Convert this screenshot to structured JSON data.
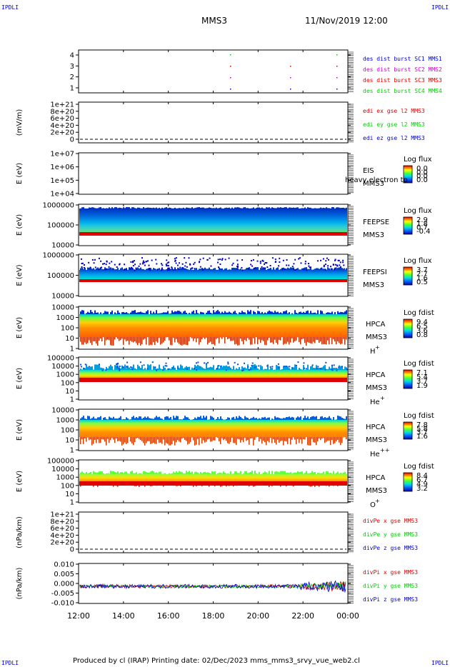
{
  "corners": {
    "tl": "IPDLI",
    "tr": "IPDLI",
    "bl": "IPDLI",
    "br": "IPDLI"
  },
  "header": {
    "spacecraft": "MMS3",
    "datetime": "11/Nov/2019 12:00"
  },
  "footer": {
    "text": "Produced by cl (IRAP)   Printing date: 02/Dec/2023   mms_mms3_srvy_vue_web2.cl"
  },
  "colors": {
    "blue": "#0000cc",
    "magenta": "#cc00cc",
    "red": "#dd0000",
    "green": "#00cc00"
  },
  "chart_data": {
    "type": "multi-panel",
    "x_ticks": [
      "12:00",
      "14:00",
      "16:00",
      "18:00",
      "20:00",
      "22:00",
      "00:00"
    ],
    "panels": [
      {
        "kind": "burst",
        "y_ticks": [
          "4",
          "3",
          "2",
          "1"
        ],
        "legend": [
          {
            "text": "des dist burst SC1 MMS1",
            "color": "#0000cc"
          },
          {
            "text": "des dist burst SC2 MMS2",
            "color": "#cc00cc"
          },
          {
            "text": "des dist burst SC3 MMS3",
            "color": "#dd0000"
          },
          {
            "text": "des dist burst SC4 MMS4",
            "color": "#00cc00"
          }
        ]
      },
      {
        "kind": "line",
        "ylabel": "(mV/m)",
        "y_ticks": [
          "1e+21",
          "8e+20",
          "6e+20",
          "4e+20",
          "2e+20",
          "0"
        ],
        "legend": [
          {
            "text": "edi ex gse l2 MMS3",
            "color": "#dd0000"
          },
          {
            "text": "edi ey gse l2 MMS3",
            "color": "#00cc00"
          },
          {
            "text": "edi ez gse l2 MMS3",
            "color": "#0000cc"
          }
        ]
      },
      {
        "kind": "spec",
        "ylabel": "E (eV)",
        "y_ticks": [
          "1e+07",
          "1e+06",
          "1e+05",
          "1e+04"
        ],
        "right_labels": [
          "EIS",
          "MMS3"
        ],
        "overlay": "heavy electron to",
        "cbar_title": "Log flux",
        "cbar_ticks": [
          "0.0",
          "0.0",
          "0.0",
          "0.0"
        ]
      },
      {
        "kind": "spec",
        "ylabel": "E (eV)",
        "y_ticks": [
          "1000000",
          "100000",
          "10000"
        ],
        "right_labels": [
          "FEEPSE",
          "MMS3"
        ],
        "cbar_title": "Log flux",
        "cbar_ticks": [
          "2.9",
          "1.8",
          "0.7",
          "-0.4"
        ]
      },
      {
        "kind": "spec",
        "ylabel": "E (eV)",
        "y_ticks": [
          "1000000",
          "100000",
          "10000"
        ],
        "right_labels": [
          "FEEPSI",
          "MMS3"
        ],
        "cbar_title": "Log flux",
        "cbar_ticks": [
          "3.7",
          "2.7",
          "1.6",
          "0.5"
        ]
      },
      {
        "kind": "spec",
        "ylabel": "E (eV)",
        "y_ticks": [
          "10000",
          "1000",
          "100",
          "10",
          "1"
        ],
        "right_labels": [
          "HPCA",
          "MMS3",
          "H+"
        ],
        "cbar_title": "Log fdist",
        "cbar_ticks": [
          "9.4",
          "6.5",
          "3.6",
          "0.8"
        ]
      },
      {
        "kind": "spec",
        "ylabel": "E (eV)",
        "y_ticks": [
          "100000",
          "10000",
          "1000",
          "100",
          "10",
          "1"
        ],
        "right_labels": [
          "HPCA",
          "MMS3",
          "He+"
        ],
        "cbar_title": "Log fdist",
        "cbar_ticks": [
          "7.1",
          "5.4",
          "3.7",
          "1.9"
        ]
      },
      {
        "kind": "spec",
        "ylabel": "E (eV)",
        "y_ticks": [
          "10000",
          "1000",
          "100",
          "10",
          "1"
        ],
        "right_labels": [
          "HPCA",
          "MMS3",
          "He++"
        ],
        "cbar_title": "Log fdist",
        "cbar_ticks": [
          "7.8",
          "5.8",
          "3.7",
          "1.6"
        ]
      },
      {
        "kind": "spec",
        "ylabel": "E (eV)",
        "y_ticks": [
          "100000",
          "10000",
          "1000",
          "100",
          "10",
          "1"
        ],
        "right_labels": [
          "HPCA",
          "MMS3",
          "O+"
        ],
        "cbar_title": "Log fdist",
        "cbar_ticks": [
          "8.4",
          "6.7",
          "4.9",
          "3.2"
        ]
      },
      {
        "kind": "line",
        "ylabel": "(nPa/km)",
        "y_ticks": [
          "1e+21",
          "8e+20",
          "6e+20",
          "4e+20",
          "2e+20",
          "0"
        ],
        "legend": [
          {
            "text": "divPe x gse MMS3",
            "color": "#dd0000"
          },
          {
            "text": "divPe y gse MMS3",
            "color": "#00cc00"
          },
          {
            "text": "divPe z gse MMS3",
            "color": "#0000cc"
          }
        ]
      },
      {
        "kind": "line",
        "ylabel": "(nPa/km)",
        "y_ticks": [
          "0.010",
          "0.005",
          "0.000",
          "-0.005",
          "-0.010"
        ],
        "legend": [
          {
            "text": "divPi x gse MMS3",
            "color": "#dd0000"
          },
          {
            "text": "divPi y gse MMS3",
            "color": "#00cc00"
          },
          {
            "text": "divPi z gse MMS3",
            "color": "#0000cc"
          }
        ]
      }
    ]
  }
}
